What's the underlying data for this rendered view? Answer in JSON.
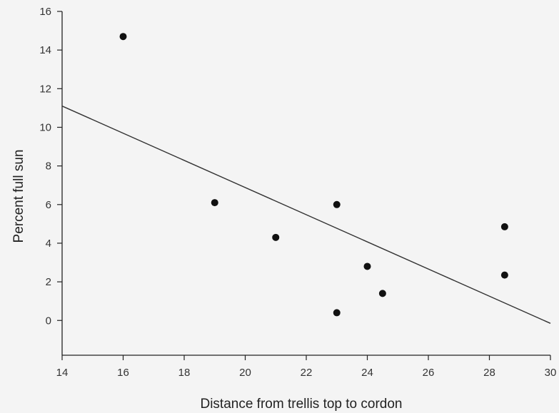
{
  "chart_data": {
    "type": "scatter",
    "title": "",
    "xlabel": "Distance from trellis top to cordon",
    "ylabel": "Percent full sun",
    "xlim": [
      14,
      30
    ],
    "ylim": [
      -1.8,
      16
    ],
    "x_ticks": [
      14,
      16,
      18,
      20,
      22,
      24,
      26,
      28,
      30
    ],
    "y_ticks": [
      0,
      2,
      4,
      6,
      8,
      10,
      12,
      14,
      16
    ],
    "grid": false,
    "legend": "none",
    "series": [
      {
        "points": [
          {
            "x": 16,
            "y": 14.7
          },
          {
            "x": 19,
            "y": 6.1
          },
          {
            "x": 21,
            "y": 4.3
          },
          {
            "x": 23,
            "y": 6.0
          },
          {
            "x": 23,
            "y": 0.4
          },
          {
            "x": 24,
            "y": 2.8
          },
          {
            "x": 24.5,
            "y": 1.4
          },
          {
            "x": 28.5,
            "y": 4.85
          },
          {
            "x": 28.5,
            "y": 2.35
          }
        ]
      }
    ],
    "trendline": {
      "type": "linear",
      "from": {
        "x": 14,
        "y": 11.1
      },
      "to": {
        "x": 30,
        "y": -0.15
      }
    },
    "colors": {
      "points": "#111111",
      "line": "#333333",
      "axis": "#222222",
      "background": "#f4f4f4"
    }
  }
}
